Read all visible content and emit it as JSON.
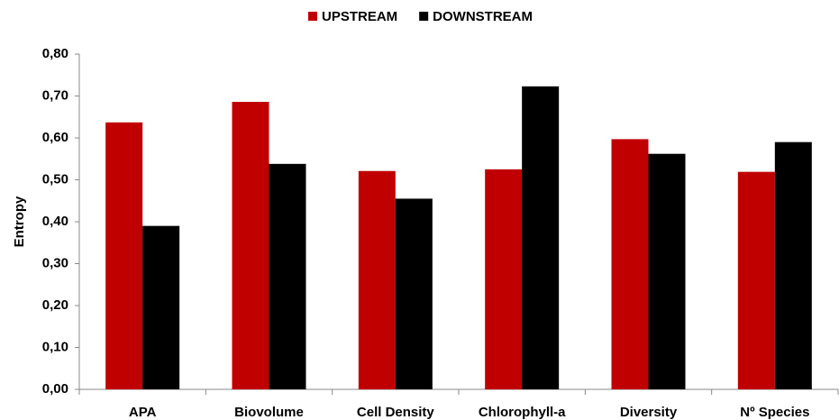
{
  "chart_data": {
    "type": "bar",
    "y_label": "Entropy",
    "categories": [
      "APA",
      "Biovolume",
      "Cell Density",
      "Chlorophyll-a",
      "Diversity",
      "Nº  Species"
    ],
    "series": [
      {
        "name": "UPSTREAM",
        "color": "#c00000",
        "values": [
          0.637,
          0.686,
          0.521,
          0.525,
          0.597,
          0.519
        ]
      },
      {
        "name": "DOWNSTREAM",
        "color": "#000000",
        "values": [
          0.39,
          0.538,
          0.455,
          0.723,
          0.562,
          0.59
        ]
      }
    ],
    "ylim": [
      0,
      0.8
    ],
    "yticks": [
      {
        "value": 0,
        "label": "0,00"
      },
      {
        "value": 0.1,
        "label": "0,10"
      },
      {
        "value": 0.2,
        "label": "0,20"
      },
      {
        "value": 0.3,
        "label": "0,30"
      },
      {
        "value": 0.4,
        "label": "0,40"
      },
      {
        "value": 0.5,
        "label": "0,50"
      },
      {
        "value": 0.6,
        "label": "0,60"
      },
      {
        "value": 0.7,
        "label": "0,70"
      },
      {
        "value": 0.8,
        "label": "0,80"
      }
    ],
    "legend": "top",
    "grid": false
  }
}
